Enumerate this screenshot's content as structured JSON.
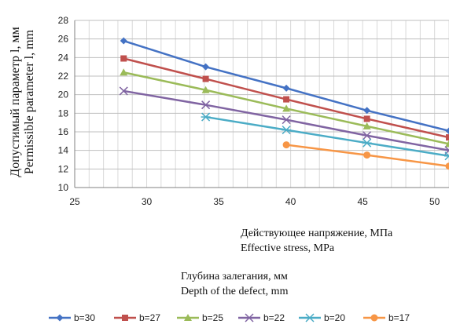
{
  "chart_data": {
    "type": "line",
    "ylabel_ru": "Допустимый параметр l, мм",
    "ylabel_en": "Permissible parameter l, mm",
    "xlabel_ru": "Глубина залегания, мм",
    "xlabel_en": "Depth of the defect, mm",
    "annotation_ru": "Действующее напряжение, МПа",
    "annotation_en": "Effective stress, MPa",
    "xlim": [
      25,
      51
    ],
    "ylim": [
      10,
      28
    ],
    "x_ticks": [
      25,
      30,
      35,
      40,
      45,
      50
    ],
    "y_ticks": [
      10,
      12,
      14,
      16,
      18,
      20,
      22,
      24,
      26,
      28
    ],
    "grid": true,
    "legend_position": "bottom",
    "series": [
      {
        "name": "b=30",
        "color": "#4472c4",
        "marker": "diamond",
        "x": [
          28.4,
          34.1,
          39.7,
          45.3,
          51
        ],
        "y": [
          25.8,
          23.0,
          20.7,
          18.3,
          16.1
        ]
      },
      {
        "name": "b=27",
        "color": "#c0504d",
        "marker": "square",
        "x": [
          28.4,
          34.1,
          39.7,
          45.3,
          51
        ],
        "y": [
          23.9,
          21.7,
          19.5,
          17.4,
          15.4
        ]
      },
      {
        "name": "b=25",
        "color": "#9bbb59",
        "marker": "triangle",
        "x": [
          28.4,
          34.1,
          39.7,
          45.3,
          51
        ],
        "y": [
          22.4,
          20.5,
          18.5,
          16.6,
          14.7
        ]
      },
      {
        "name": "b=22",
        "color": "#8064a2",
        "marker": "x",
        "x": [
          28.4,
          34.1,
          39.7,
          45.3,
          51
        ],
        "y": [
          20.4,
          18.9,
          17.3,
          15.6,
          14.0
        ]
      },
      {
        "name": "b=20",
        "color": "#4bacc6",
        "marker": "star",
        "x": [
          34.1,
          39.7,
          45.3,
          51
        ],
        "y": [
          17.6,
          16.2,
          14.8,
          13.4
        ]
      },
      {
        "name": "b=17",
        "color": "#f79646",
        "marker": "circle",
        "x": [
          39.7,
          45.3,
          51
        ],
        "y": [
          14.6,
          13.5,
          12.3
        ]
      }
    ]
  }
}
